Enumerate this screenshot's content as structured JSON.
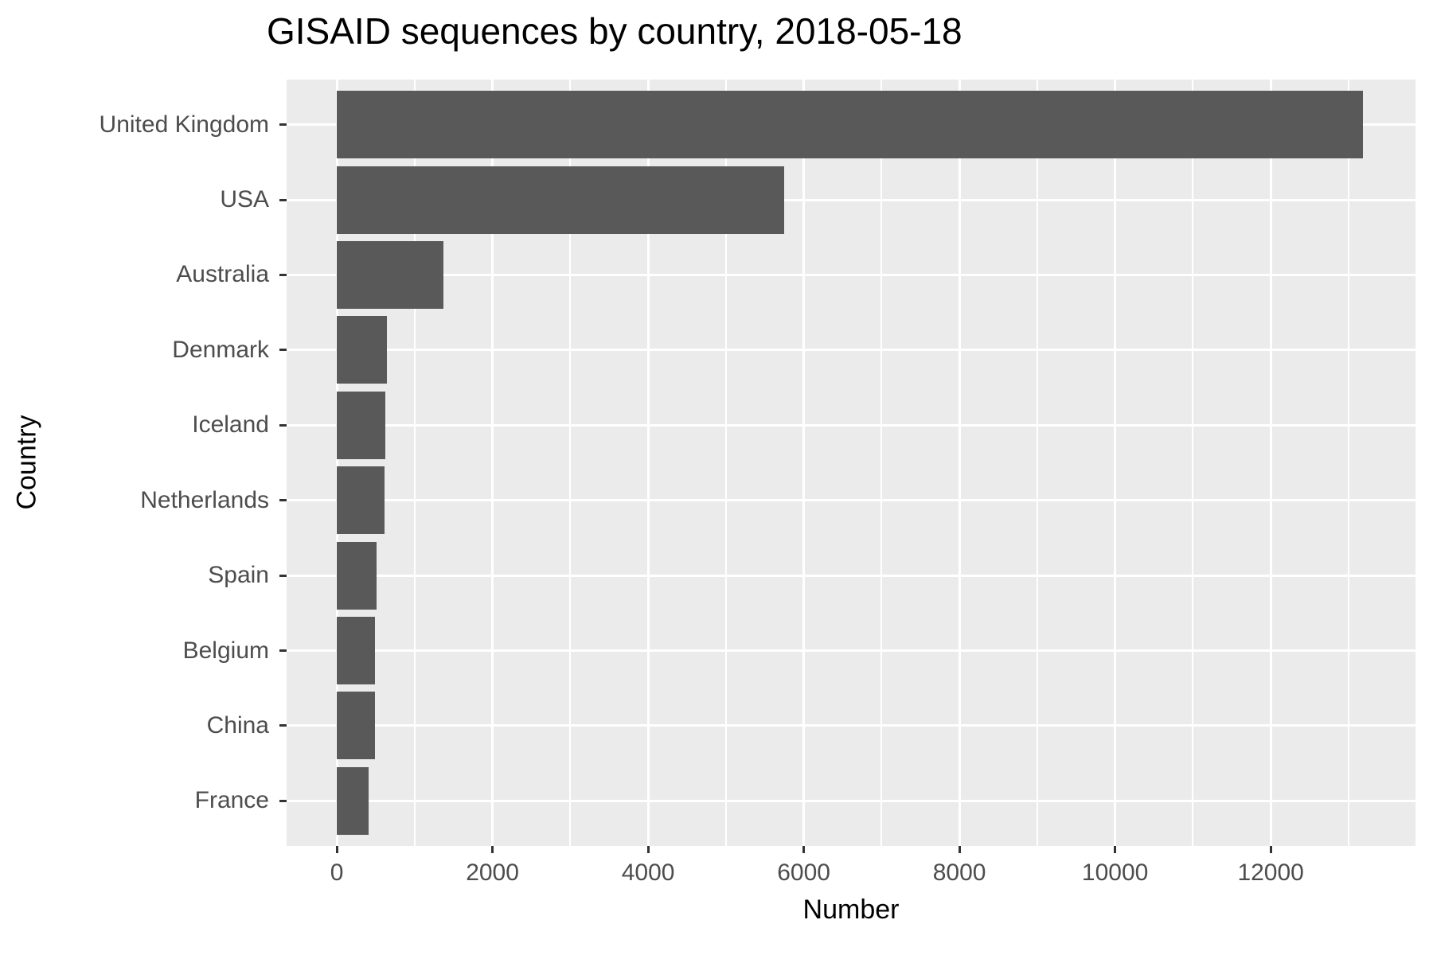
{
  "chart_data": {
    "type": "bar",
    "orientation": "horizontal",
    "title": "GISAID sequences by country, 2018-05-18",
    "xlabel": "Number",
    "ylabel": "Country",
    "categories": [
      "United Kingdom",
      "USA",
      "Australia",
      "Denmark",
      "Iceland",
      "Netherlands",
      "Spain",
      "Belgium",
      "China",
      "France"
    ],
    "values": [
      13180,
      5750,
      1370,
      645,
      625,
      615,
      515,
      490,
      490,
      405
    ],
    "x_major_ticks": [
      0,
      2000,
      4000,
      6000,
      8000,
      10000,
      12000
    ],
    "x_minor_ticks": [
      1000,
      3000,
      5000,
      7000,
      9000,
      11000,
      13000
    ],
    "xlim": [
      -645,
      13860
    ],
    "grid": true,
    "legend": "none",
    "colors": {
      "bar": "#595959",
      "panel_background": "#EBEBEB",
      "gridline": "#FFFFFF",
      "axis_text": "#4D4D4D",
      "tick_mark": "#333333",
      "title_text": "#000000"
    }
  }
}
